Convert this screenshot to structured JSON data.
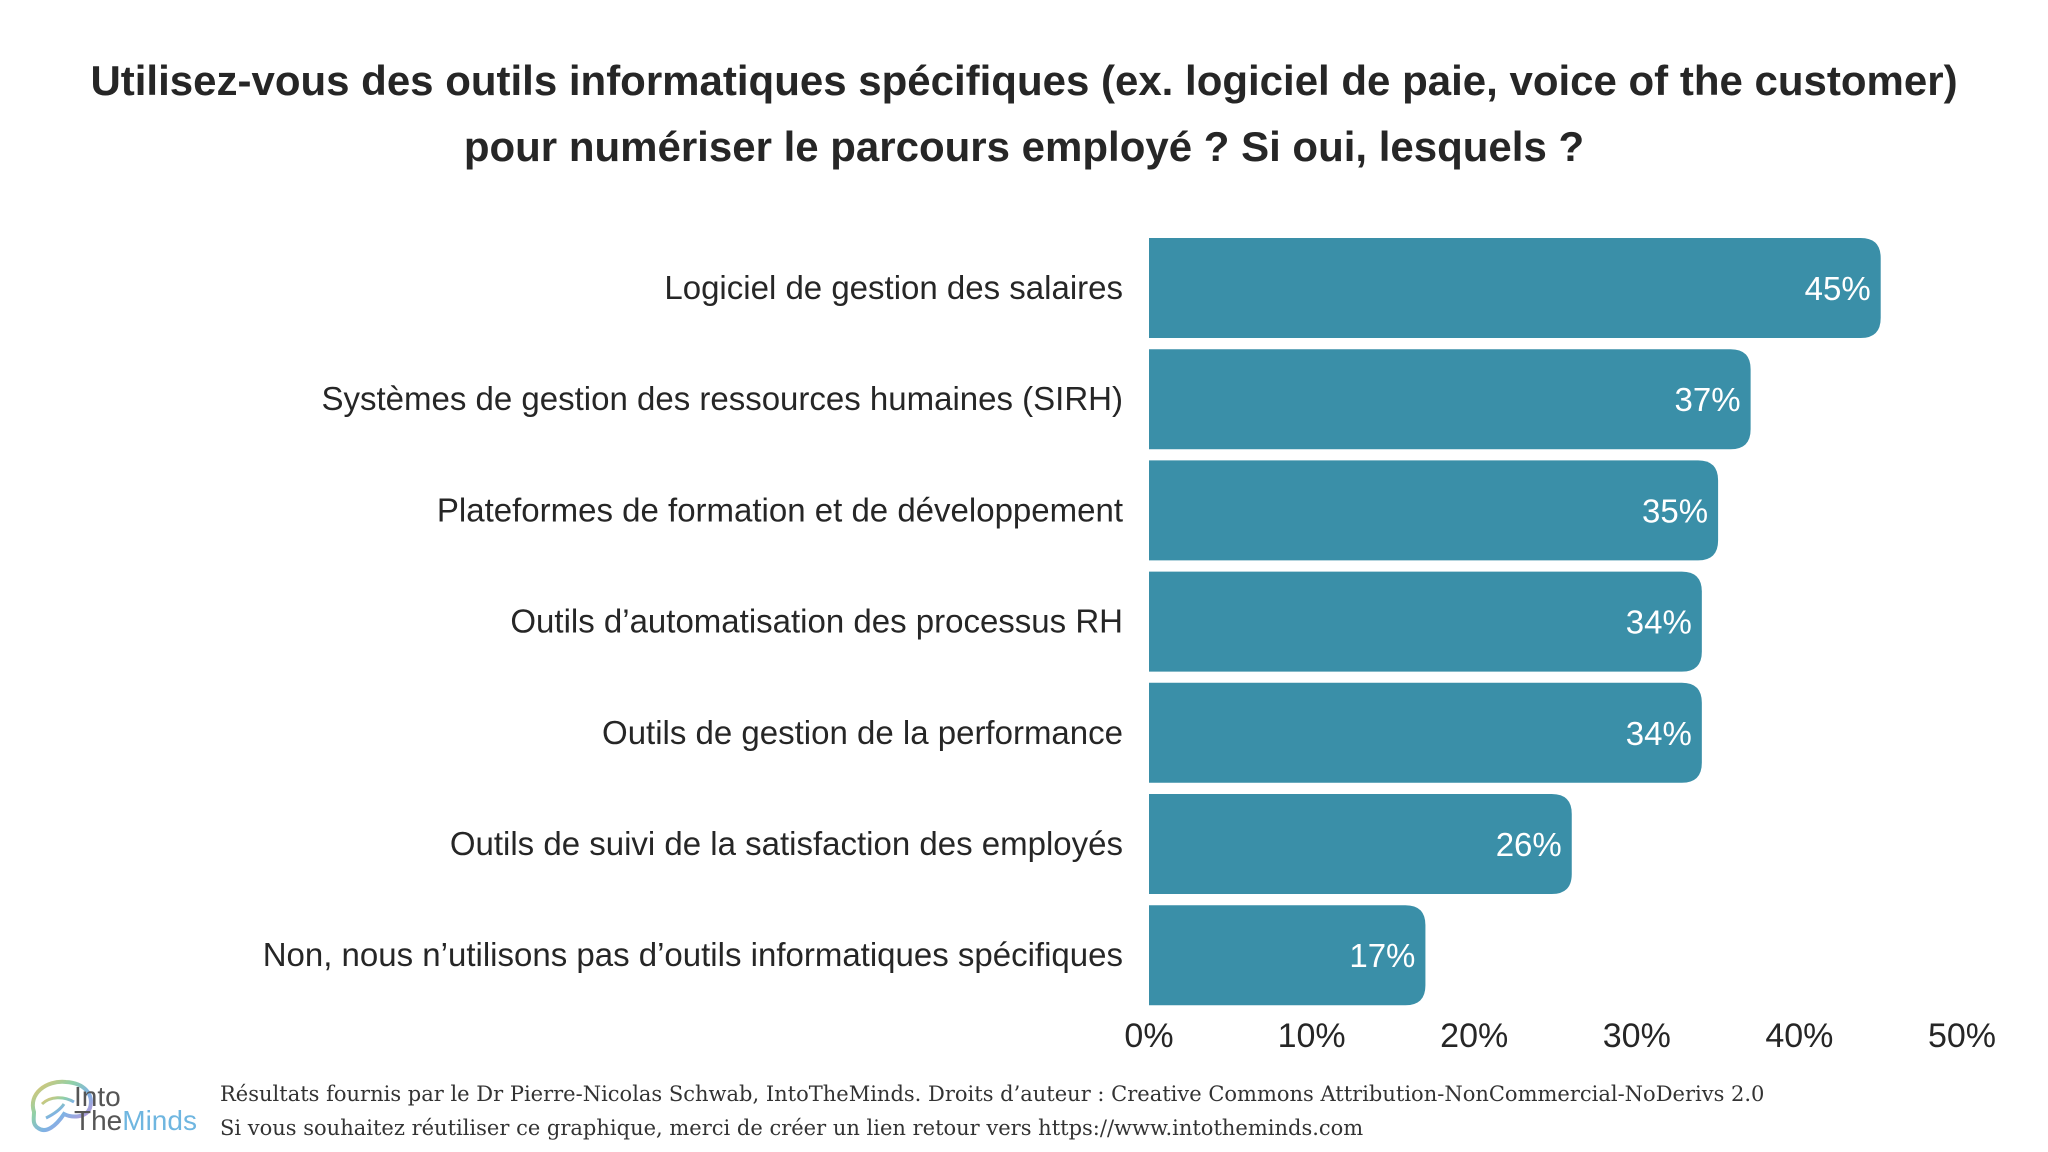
{
  "title_lines": [
    "Utilisez-vous des outils informatiques spécifiques (ex. logiciel de paie, voice of the customer)",
    "pour numériser le parcours employé ? Si oui, lesquels ?"
  ],
  "chart_data": {
    "type": "bar",
    "orientation": "horizontal",
    "title": "Utilisez-vous des outils informatiques spécifiques (ex. logiciel de paie, voice of the customer) pour numériser le parcours employé ? Si oui, lesquels ?",
    "categories": [
      "Logiciel de gestion des salaires",
      "Systèmes de gestion des ressources humaines (SIRH)",
      "Plateformes de formation et de développement",
      "Outils d’automatisation des processus RH",
      "Outils de gestion de la performance",
      "Outils de suivi de la satisfaction des employés",
      "Non, nous n’utilisons pas d’outils informatiques spécifiques"
    ],
    "values": [
      45,
      37,
      35,
      34,
      34,
      26,
      17
    ],
    "value_labels": [
      "45%",
      "37%",
      "35%",
      "34%",
      "34%",
      "26%",
      "17%"
    ],
    "xlim": [
      0,
      50
    ],
    "x_ticks": [
      0,
      10,
      20,
      30,
      40,
      50
    ],
    "x_tick_labels": [
      "0%",
      "10%",
      "20%",
      "30%",
      "40%",
      "50%"
    ],
    "xlabel": "",
    "ylabel": "",
    "grid": false,
    "bar_color": "#3a8fa8"
  },
  "footer": {
    "line1": "Résultats fournis par le Dr Pierre-Nicolas Schwab, IntoTheMinds. Droits d’auteur : Creative Commons Attribution-NonCommercial-NoDerivs 2.0",
    "line2": "Si vous souhaitez réutiliser ce graphique, merci de créer un lien retour vers https://www.intotheminds.com"
  },
  "logo": {
    "line1": "Into",
    "line2_a": "The",
    "line2_b": "Minds"
  }
}
